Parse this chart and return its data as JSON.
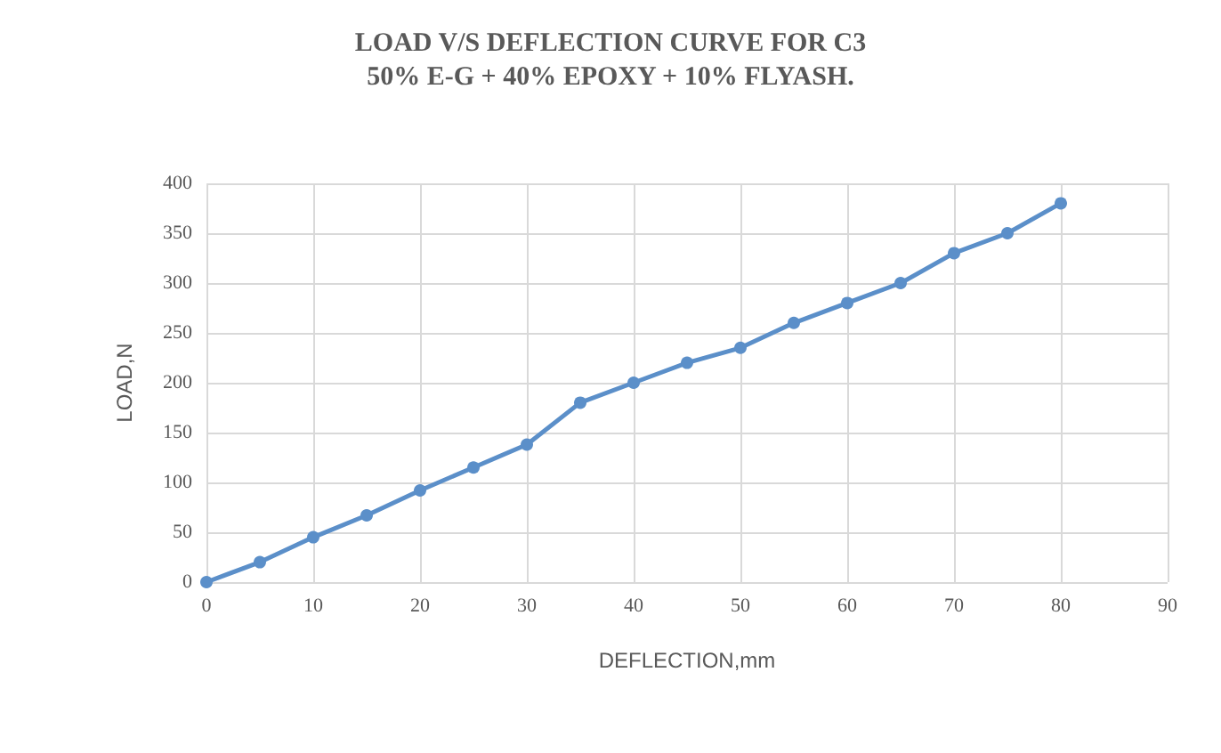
{
  "chart_data": {
    "type": "line",
    "title": "LOAD V/S DEFLECTION CURVE FOR C3",
    "subtitle": "50% E-G + 40% EPOXY + 10% FLYASH.",
    "xlabel": "DEFLECTION,mm",
    "ylabel": "LOAD,N",
    "x": [
      0,
      5,
      10,
      15,
      20,
      25,
      30,
      35,
      40,
      45,
      50,
      55,
      60,
      65,
      70,
      75,
      80
    ],
    "series": [
      {
        "color": "#5b8fc9",
        "values": [
          0,
          20,
          45,
          67,
          92,
          115,
          138,
          180,
          200,
          220,
          235,
          260,
          280,
          300,
          330,
          350,
          380
        ]
      }
    ],
    "xlim": [
      0,
      90
    ],
    "xticks": [
      0,
      10,
      20,
      30,
      40,
      50,
      60,
      70,
      80,
      90
    ],
    "ylim": [
      0,
      400
    ],
    "yticks": [
      0,
      50,
      100,
      150,
      200,
      250,
      300,
      350,
      400
    ],
    "grid": true,
    "marker": "circle",
    "line_style": "solid"
  }
}
